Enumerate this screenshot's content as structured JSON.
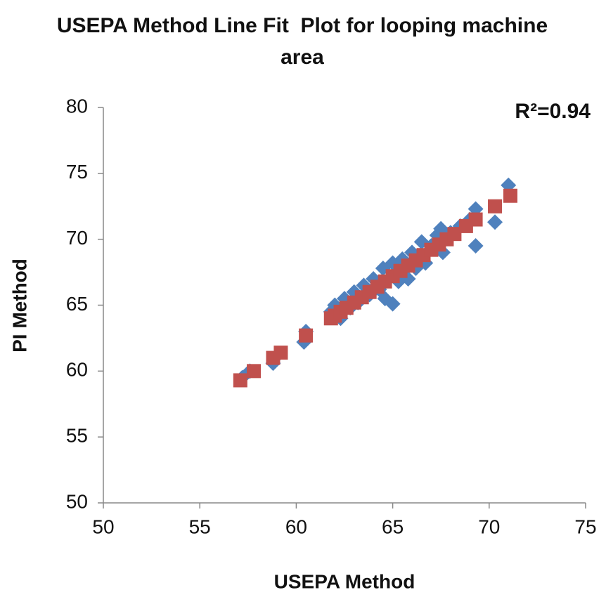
{
  "chart_data": {
    "type": "scatter",
    "title": "USEPA Method Line Fit  Plot for looping machine area",
    "x_label": "USEPA Method",
    "y_label": "PI Method",
    "annotation": "R²=0.94",
    "xlim": [
      50,
      75
    ],
    "xticks": [
      50,
      55,
      60,
      65,
      70,
      75
    ],
    "ylim": [
      50,
      80
    ],
    "yticks": [
      50,
      55,
      60,
      65,
      70,
      75,
      80
    ],
    "grid": false,
    "series": [
      {
        "color": "#4f81bd",
        "marker": "diamond",
        "x": [
          57.2,
          57.6,
          58.8,
          59.1,
          60.4,
          60.5,
          61.8,
          62,
          62.3,
          62.5,
          62.8,
          63,
          63.2,
          63.5,
          63.8,
          64,
          64.3,
          64.5,
          64.6,
          65,
          65,
          65.3,
          65.5,
          65.8,
          66,
          66.2,
          66.5,
          66.7,
          67,
          67.3,
          67.5,
          67.6,
          68,
          68.5,
          69,
          69.3,
          69.3,
          70.3,
          71
        ],
        "values": [
          59.5,
          60,
          60.6,
          61.3,
          62.2,
          63,
          64.5,
          65,
          64,
          65.5,
          64.8,
          66,
          65.2,
          66.5,
          65.8,
          67,
          66.2,
          67.8,
          65.5,
          68.2,
          65.1,
          66.8,
          68.5,
          67,
          69,
          67.8,
          69.8,
          68.2,
          69.5,
          70.3,
          70.8,
          69,
          70.5,
          71,
          71.5,
          72.3,
          69.5,
          71.3,
          74.1
        ]
      },
      {
        "color": "#c0504d",
        "marker": "square",
        "x": [
          57.1,
          57.8,
          58.8,
          59.2,
          60.5,
          61.8,
          62,
          62.3,
          62.6,
          63,
          63.4,
          63.8,
          64.2,
          64.6,
          65,
          65.4,
          65.8,
          66.2,
          66.6,
          67,
          67.4,
          67.8,
          68.2,
          68.8,
          69.3,
          70.3,
          71.1
        ],
        "values": [
          59.3,
          60.0,
          61.0,
          61.4,
          62.7,
          64.0,
          64.2,
          64.5,
          64.8,
          65.2,
          65.6,
          66.0,
          66.4,
          66.8,
          67.2,
          67.6,
          68.0,
          68.4,
          68.8,
          69.2,
          69.6,
          70.0,
          70.4,
          71.0,
          71.5,
          72.5,
          73.3
        ]
      }
    ]
  }
}
